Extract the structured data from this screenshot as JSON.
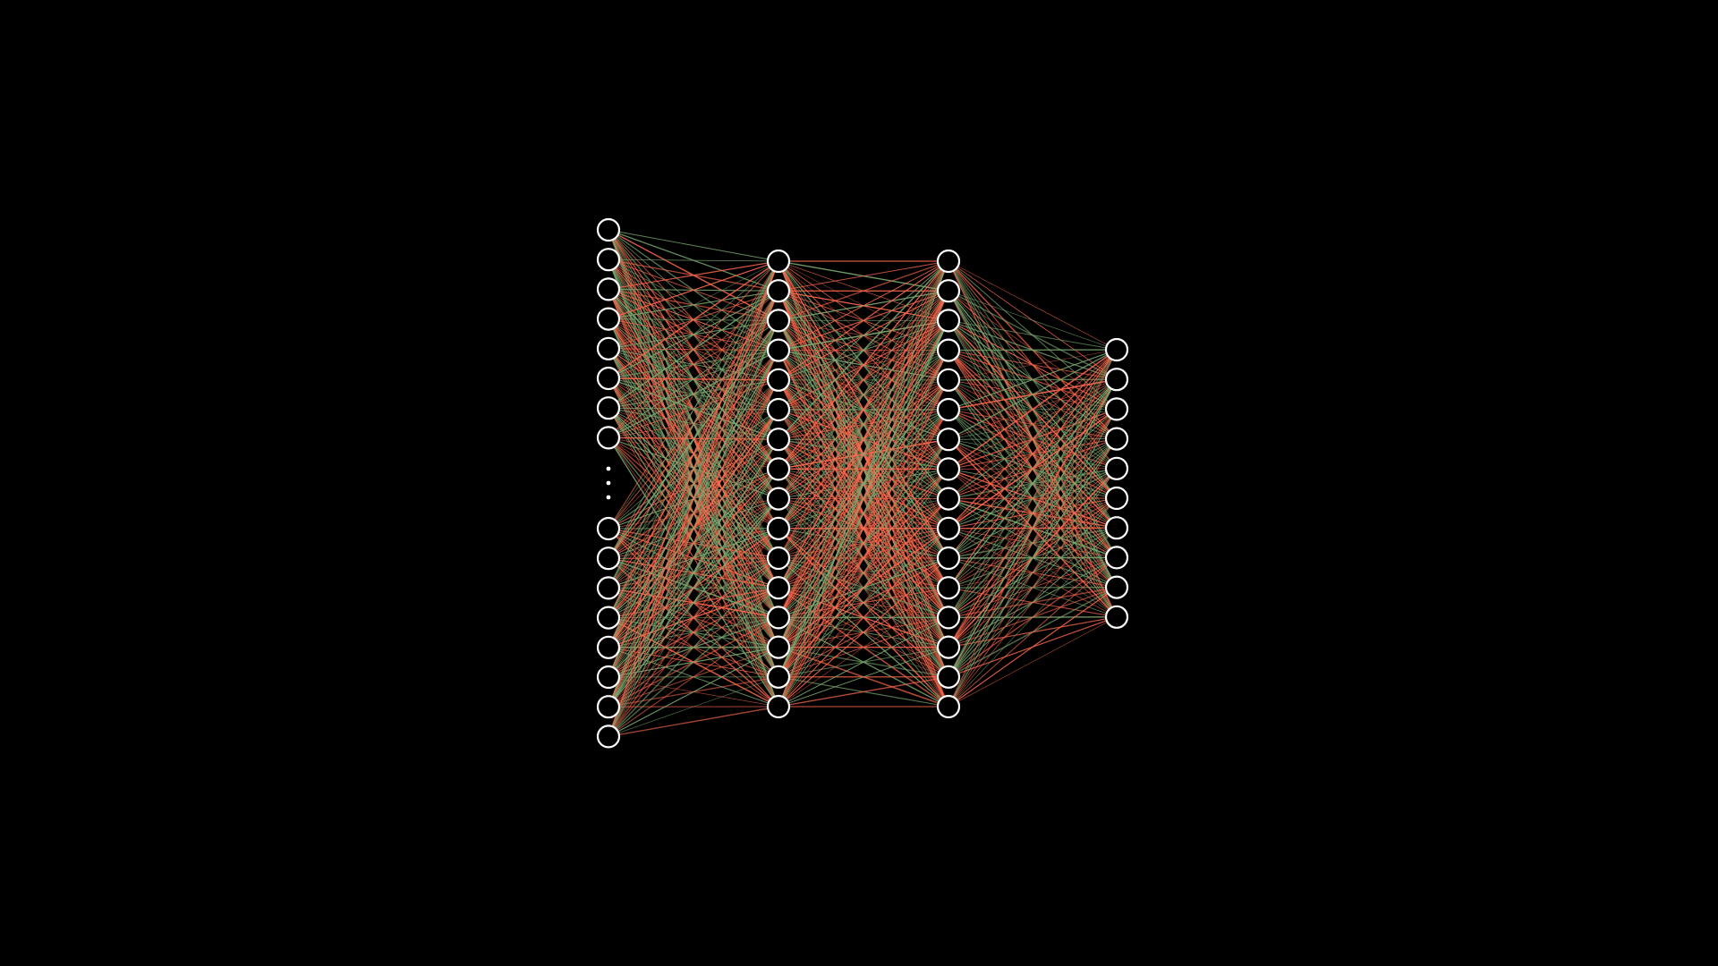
{
  "diagram": {
    "type": "fully-connected-neural-network",
    "layers": [
      {
        "name": "input-layer",
        "visible_neurons_top": 8,
        "visible_neurons_bottom": 8,
        "truncated": true
      },
      {
        "name": "hidden-layer-1",
        "visible_neurons": 16,
        "truncated": false
      },
      {
        "name": "hidden-layer-2",
        "visible_neurons": 16,
        "truncated": false
      },
      {
        "name": "output-layer",
        "visible_neurons": 10,
        "truncated": false
      }
    ],
    "colors": {
      "background": "#000000",
      "neuron_stroke": "#ffffff",
      "neuron_fill": "#000000",
      "positive_weight": "#ff6a4d",
      "negative_weight": "#7dab72",
      "ellipsis_dots": "#ffffff"
    }
  }
}
